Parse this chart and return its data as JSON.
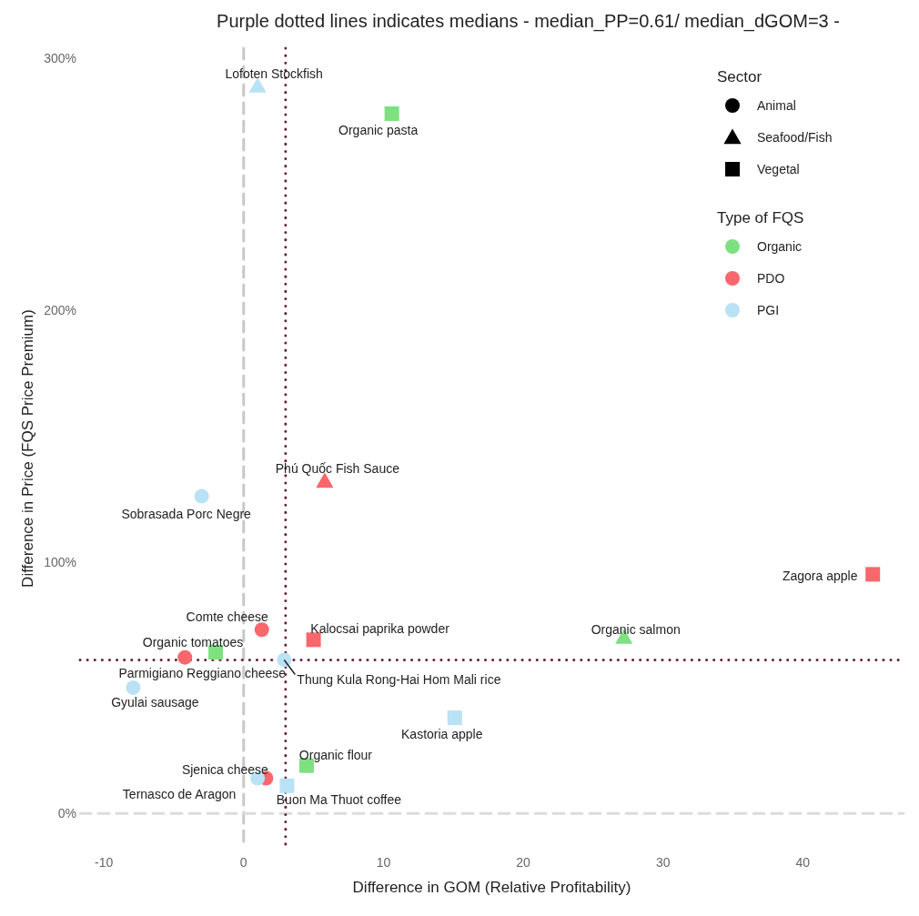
{
  "chart_data": {
    "type": "scatter",
    "title": "Purple dotted lines indicates medians - median_PP=0.61/ median_dGOM=3 -",
    "xlabel": "Difference in GOM (Relative Profitability)",
    "ylabel": "Difference in Price (FQS Price Premium)",
    "xlim": [
      -11.7,
      47.2
    ],
    "ylim": [
      -14,
      304
    ],
    "xticks": [
      -10,
      0,
      10,
      20,
      30,
      40
    ],
    "yticks": [
      {
        "value": 0,
        "label": "0%"
      },
      {
        "value": 100,
        "label": "100%"
      },
      {
        "value": 200,
        "label": "200%"
      },
      {
        "value": 300,
        "label": "300%"
      }
    ],
    "grid": false,
    "legend": "top right",
    "legend_title": [
      "Sector",
      "Type of FQS"
    ],
    "series": [
      {
        "name": "Organic",
        "color": "#7ee081",
        "marker": [
          "square",
          "square",
          "square",
          "triangle"
        ],
        "x": [
          10.6,
          -2,
          4.5,
          27.2
        ],
        "values": [
          278,
          64,
          19,
          70
        ]
      },
      {
        "name": "PDO",
        "color": "#f8676b",
        "marker": [
          "circle",
          "circle",
          "circle",
          "triangle",
          "square",
          "square"
        ],
        "x": [
          1.3,
          -4.2,
          1.6,
          5.8,
          45,
          5
        ],
        "values": [
          73,
          62,
          14,
          132,
          95,
          69
        ]
      },
      {
        "name": "PGI",
        "color": "#b9e2f5",
        "marker": [
          "circle",
          "circle",
          "circle",
          "circle",
          "triangle",
          "square",
          "square"
        ],
        "x": [
          -3,
          -7.9,
          1,
          2.9,
          1,
          15.1,
          3.1
        ],
        "values": [
          126,
          50,
          14,
          61,
          289,
          38,
          11
        ]
      }
    ],
    "ref_lines": [
      {
        "axis": "x",
        "value": 0,
        "color": "#c8c8c8",
        "line_style": "dashed"
      },
      {
        "axis": "y",
        "value": 0,
        "color": "#dcdcdc",
        "line_style": "dashed"
      },
      {
        "axis": "x",
        "value": 3,
        "color": "#6b1f3a",
        "line_style": "dotted"
      },
      {
        "axis": "y",
        "value": 61,
        "color": "#6b1f3a",
        "line_style": "dotted"
      }
    ],
    "annotations": [
      "Animal",
      "Seafood/Fish",
      "Vegetal",
      {
        "text": "Lofoten Stockfish",
        "x": 1,
        "y": 289
      },
      {
        "text": "Organic pasta",
        "x": 10.6,
        "y": 278
      },
      {
        "text": "Phú Quốc Fish Sauce",
        "x": 5.8,
        "y": 132
      },
      {
        "text": "Sobrasada Porc Negre",
        "x": -3,
        "y": 126
      },
      {
        "text": "Zagora apple",
        "x": 45,
        "y": 95
      },
      {
        "text": "Comte cheese",
        "x": 1.3,
        "y": 73
      },
      {
        "text": "Kalocsai paprika powder",
        "x": 5,
        "y": 69
      },
      {
        "text": "Organic salmon",
        "x": 27.2,
        "y": 70
      },
      {
        "text": "Organic tomatoes",
        "x": -2,
        "y": 64
      },
      {
        "text": "Parmigiano Reggiano cheese",
        "x": -4.2,
        "y": 62
      },
      {
        "text": "Thung Kula Rong-Hai Hom Mali rice",
        "x": 2.9,
        "y": 61
      },
      {
        "text": "Gyulai sausage",
        "x": -7.9,
        "y": 50
      },
      {
        "text": "Kastoria apple",
        "x": 15.1,
        "y": 38
      },
      {
        "text": "Organic flour",
        "x": 4.5,
        "y": 19
      },
      {
        "text": "Sjenica cheese",
        "x": 1.6,
        "y": 14
      },
      {
        "text": "Ternasco de Aragon",
        "x": 1,
        "y": 14
      },
      {
        "text": "Buon Ma Thuot coffee",
        "x": 3.1,
        "y": 11
      }
    ]
  }
}
